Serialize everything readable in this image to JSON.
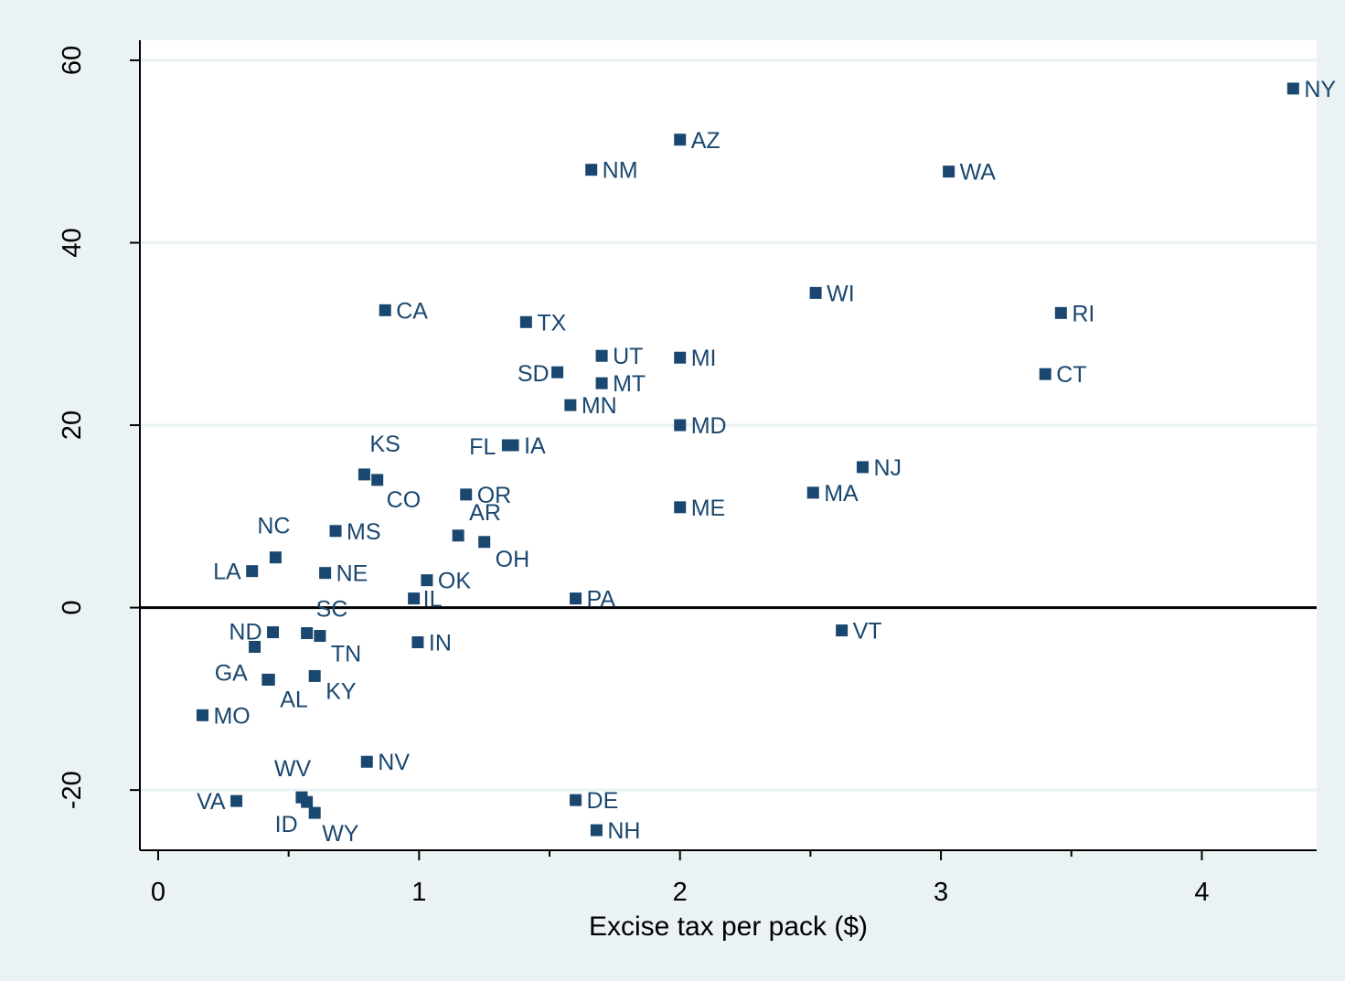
{
  "chart_data": {
    "type": "scatter",
    "title": "",
    "xlabel": "Excise tax per pack ($)",
    "ylabel": "",
    "xlim": [
      -0.07,
      4.44
    ],
    "ylim": [
      -26.6,
      62.2
    ],
    "x_ticks": [
      0,
      1,
      2,
      3,
      4
    ],
    "x_tick_labels": [
      "0",
      "1",
      "2",
      "3",
      "4"
    ],
    "y_ticks": [
      -20,
      0,
      20,
      40,
      60
    ],
    "y_tick_labels": [
      "-20",
      "0",
      "20",
      "40",
      "60"
    ],
    "grid": true,
    "zero_line": true,
    "marker_color": "#1a476f",
    "points": [
      {
        "label": "NY",
        "x": 4.35,
        "y": 56.9
      },
      {
        "label": "AZ",
        "x": 2.0,
        "y": 51.3
      },
      {
        "label": "NM",
        "x": 1.66,
        "y": 48.0
      },
      {
        "label": "WA",
        "x": 3.03,
        "y": 47.8
      },
      {
        "label": "WI",
        "x": 2.52,
        "y": 34.5
      },
      {
        "label": "CA",
        "x": 0.87,
        "y": 32.6
      },
      {
        "label": "RI",
        "x": 3.46,
        "y": 32.3
      },
      {
        "label": "TX",
        "x": 1.41,
        "y": 31.3
      },
      {
        "label": "UT",
        "x": 1.7,
        "y": 27.6
      },
      {
        "label": "MI",
        "x": 2.0,
        "y": 27.4
      },
      {
        "label": "SD",
        "x": 1.53,
        "y": 25.8
      },
      {
        "label": "CT",
        "x": 3.4,
        "y": 25.6
      },
      {
        "label": "MT",
        "x": 1.7,
        "y": 24.6
      },
      {
        "label": "MN",
        "x": 1.58,
        "y": 22.2
      },
      {
        "label": "MD",
        "x": 2.0,
        "y": 20.0
      },
      {
        "label": "FL",
        "x": 1.34,
        "y": 17.8
      },
      {
        "label": "IA",
        "x": 1.36,
        "y": 17.8
      },
      {
        "label": "NJ",
        "x": 2.7,
        "y": 15.4
      },
      {
        "label": "KS",
        "x": 0.79,
        "y": 14.6
      },
      {
        "label": "CO",
        "x": 0.84,
        "y": 14.0
      },
      {
        "label": "MA",
        "x": 2.51,
        "y": 12.6
      },
      {
        "label": "OR",
        "x": 1.18,
        "y": 12.4
      },
      {
        "label": "ME",
        "x": 2.0,
        "y": 11.0
      },
      {
        "label": "MS",
        "x": 0.68,
        "y": 8.4
      },
      {
        "label": "AR",
        "x": 1.15,
        "y": 7.9
      },
      {
        "label": "OH",
        "x": 1.25,
        "y": 7.2
      },
      {
        "label": "NC",
        "x": 0.45,
        "y": 5.5
      },
      {
        "label": "LA",
        "x": 0.36,
        "y": 4.0
      },
      {
        "label": "NE",
        "x": 0.64,
        "y": 3.8
      },
      {
        "label": "OK",
        "x": 1.03,
        "y": 3.0
      },
      {
        "label": "IL",
        "x": 0.98,
        "y": 1.0
      },
      {
        "label": "PA",
        "x": 1.6,
        "y": 1.0
      },
      {
        "label": "VT",
        "x": 2.62,
        "y": -2.5
      },
      {
        "label": "ND",
        "x": 0.44,
        "y": -2.7
      },
      {
        "label": "SC",
        "x": 0.57,
        "y": -2.8
      },
      {
        "label": "TN",
        "x": 0.62,
        "y": -3.1
      },
      {
        "label": "IN",
        "x": 0.995,
        "y": -3.8
      },
      {
        "label": "",
        "x": 0.37,
        "y": -4.3
      },
      {
        "label": "KY",
        "x": 0.6,
        "y": -7.5
      },
      {
        "label": "GA",
        "x": 0.42,
        "y": -7.9
      },
      {
        "label": "AL",
        "x": 0.425,
        "y": -7.9
      },
      {
        "label": "MO",
        "x": 0.17,
        "y": -11.8
      },
      {
        "label": "NV",
        "x": 0.8,
        "y": -16.9
      },
      {
        "label": "WV",
        "x": 0.55,
        "y": -20.8
      },
      {
        "label": "DE",
        "x": 1.6,
        "y": -21.1
      },
      {
        "label": "VA",
        "x": 0.3,
        "y": -21.2
      },
      {
        "label": "ID",
        "x": 0.57,
        "y": -21.3
      },
      {
        "label": "WY",
        "x": 0.6,
        "y": -22.5
      },
      {
        "label": "NH",
        "x": 1.68,
        "y": -24.4
      }
    ]
  }
}
